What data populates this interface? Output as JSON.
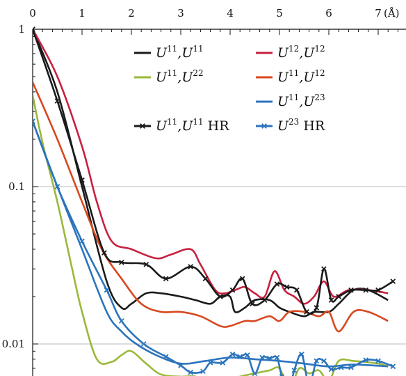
{
  "chart_data": {
    "type": "line",
    "title": "",
    "xlabel": "",
    "ylabel": "",
    "x_unit_label": "(Å)",
    "xlim": [
      0,
      7.4
    ],
    "ylim": [
      0.005,
      1
    ],
    "y_scale": "log",
    "x_ticks": [
      0,
      1,
      2,
      3,
      4,
      5,
      6,
      7
    ],
    "x_tick_labels": [
      "0",
      "1",
      "2",
      "3",
      "4",
      "5",
      "6",
      "7"
    ],
    "y_ticks": [
      1,
      0.1,
      0.01
    ],
    "y_tick_labels": [
      "1",
      "0.1",
      "0.01"
    ],
    "x_axis_position": "top",
    "grid": "horizontal at decades",
    "legend_position": "upper-middle, two columns",
    "series": [
      {
        "name": "U11,U11",
        "legend_base1": "U",
        "legend_sup1": "11",
        "legend_base2": "U",
        "legend_sup2": "11",
        "legend_suffix": "",
        "color": "#1a1a1a",
        "marker": "none",
        "x": [
          0,
          0.5,
          1,
          1.5,
          1.8,
          2,
          2.3,
          2.6,
          3,
          3.3,
          3.6,
          3.8,
          4,
          4.1,
          4.3,
          4.5,
          4.8,
          5,
          5.2,
          5.5,
          5.7,
          6,
          6.2,
          6.5,
          6.8,
          7.2
        ],
        "y": [
          1,
          0.4,
          0.1,
          0.025,
          0.017,
          0.018,
          0.021,
          0.021,
          0.02,
          0.019,
          0.018,
          0.02,
          0.02,
          0.016,
          0.017,
          0.019,
          0.019,
          0.017,
          0.016,
          0.015,
          0.016,
          0.016,
          0.018,
          0.022,
          0.022,
          0.019
        ]
      },
      {
        "name": "U12,U12",
        "legend_base1": "U",
        "legend_sup1": "12",
        "legend_base2": "U",
        "legend_sup2": "12",
        "legend_suffix": "",
        "color": "#c8203f",
        "marker": "none",
        "x": [
          0,
          0.5,
          1,
          1.3,
          1.6,
          2,
          2.5,
          2.8,
          3.2,
          3.4,
          3.7,
          3.9,
          4.1,
          4.3,
          4.5,
          4.7,
          4.9,
          5.1,
          5.3,
          5.5,
          5.7,
          5.9,
          6.1,
          6.4,
          6.8,
          7.2
        ],
        "y": [
          1,
          0.5,
          0.18,
          0.08,
          0.045,
          0.04,
          0.035,
          0.037,
          0.04,
          0.032,
          0.022,
          0.021,
          0.022,
          0.023,
          0.021,
          0.02,
          0.029,
          0.022,
          0.02,
          0.018,
          0.02,
          0.025,
          0.02,
          0.022,
          0.022,
          0.021
        ]
      },
      {
        "name": "U11,U22",
        "legend_base1": "U",
        "legend_sup1": "11",
        "legend_base2": "U",
        "legend_sup2": "22",
        "legend_suffix": "",
        "color": "#9ab83a",
        "marker": "none",
        "x": [
          0,
          0.2,
          0.5,
          0.8,
          1,
          1.3,
          1.6,
          1.8,
          2,
          2.3,
          2.6,
          3,
          3.3,
          3.6,
          3.8,
          4,
          4.2,
          4.5,
          4.8,
          5,
          5.2,
          5.4,
          5.6,
          5.8,
          6,
          6.2,
          6.5,
          7,
          7.2
        ],
        "y": [
          0.38,
          0.19,
          0.08,
          0.03,
          0.016,
          0.008,
          0.0077,
          0.0085,
          0.009,
          0.0075,
          0.0064,
          0.0062,
          0.0062,
          0.0055,
          0.0048,
          0.0058,
          0.0062,
          0.0065,
          0.0068,
          0.007,
          0.0052,
          0.007,
          0.0065,
          0.0068,
          0.0058,
          0.0078,
          0.0078,
          0.0075,
          0.0072
        ]
      },
      {
        "name": "U11,U12",
        "legend_base1": "U",
        "legend_sup1": "11",
        "legend_base2": "U",
        "legend_sup2": "12",
        "legend_suffix": "",
        "color": "#d9481f",
        "marker": "none",
        "x": [
          0,
          0.5,
          1,
          1.4,
          1.8,
          2.2,
          2.6,
          3,
          3.4,
          3.8,
          4,
          4.3,
          4.5,
          4.8,
          5,
          5.2,
          5.5,
          5.8,
          6,
          6.2,
          6.5,
          6.8,
          7.2
        ],
        "y": [
          0.46,
          0.2,
          0.08,
          0.04,
          0.026,
          0.018,
          0.016,
          0.016,
          0.015,
          0.013,
          0.013,
          0.014,
          0.014,
          0.015,
          0.014,
          0.016,
          0.016,
          0.015,
          0.016,
          0.012,
          0.016,
          0.016,
          0.014
        ]
      },
      {
        "name": "U11,U23",
        "legend_base1": "U",
        "legend_sup1": "11",
        "legend_base2": "U",
        "legend_sup2": "23",
        "legend_suffix": "",
        "color": "#2b74bd",
        "marker": "none",
        "x": [
          0,
          0.5,
          1,
          1.5,
          1.8,
          2.1,
          2.5,
          3,
          3.5,
          4,
          4.5,
          5,
          5.5,
          6,
          6.5,
          7.2
        ],
        "y": [
          0.26,
          0.1,
          0.04,
          0.016,
          0.012,
          0.01,
          0.0085,
          0.0075,
          0.0078,
          0.0082,
          0.008,
          0.0078,
          0.0075,
          0.0072,
          0.0074,
          0.0072
        ]
      },
      {
        "name": "U11,U11 HR",
        "legend_base1": "U",
        "legend_sup1": "11",
        "legend_base2": "U",
        "legend_sup2": "11",
        "legend_suffix": " HR",
        "color": "#1a1a1a",
        "marker": "x",
        "x": [
          0,
          0.5,
          1,
          1.45,
          1.8,
          2.3,
          2.7,
          3.2,
          3.5,
          3.8,
          4.05,
          4.25,
          4.45,
          4.7,
          4.95,
          5.15,
          5.35,
          5.55,
          5.75,
          5.9,
          6.05,
          6.2,
          6.45,
          6.75,
          7.0,
          7.3
        ],
        "y": [
          1,
          0.35,
          0.11,
          0.038,
          0.033,
          0.032,
          0.026,
          0.031,
          0.026,
          0.02,
          0.022,
          0.026,
          0.018,
          0.019,
          0.024,
          0.023,
          0.022,
          0.016,
          0.017,
          0.03,
          0.019,
          0.02,
          0.022,
          0.022,
          0.022,
          0.025
        ]
      },
      {
        "name": "U11,U23 HR",
        "legend_base1": "U",
        "legend_sup1": "23",
        "legend_base2": "",
        "legend_sup2": "",
        "legend_suffix": " HR",
        "color": "#2b74bd",
        "marker": "x",
        "x": [
          0,
          0.5,
          1,
          1.5,
          1.8,
          2.25,
          2.7,
          3.0,
          3.2,
          3.45,
          3.6,
          3.85,
          4.05,
          4.2,
          4.35,
          4.5,
          4.65,
          4.8,
          4.95,
          5.05,
          5.2,
          5.3,
          5.45,
          5.6,
          5.75,
          5.9,
          6.05,
          6.25,
          6.45,
          6.75,
          7.0,
          7.3
        ],
        "y": [
          0.26,
          0.1,
          0.045,
          0.022,
          0.014,
          0.01,
          0.0083,
          0.0073,
          0.0066,
          0.0067,
          0.0076,
          0.0076,
          0.0086,
          0.0083,
          0.0085,
          0.0065,
          0.0082,
          0.0081,
          0.0082,
          0.0062,
          0.0052,
          0.0068,
          0.0086,
          0.0055,
          0.0078,
          0.0078,
          0.0069,
          0.0071,
          0.0071,
          0.0079,
          0.0078,
          0.0072
        ]
      }
    ]
  },
  "legend_order": [
    0,
    1,
    2,
    3,
    4,
    5,
    6
  ]
}
